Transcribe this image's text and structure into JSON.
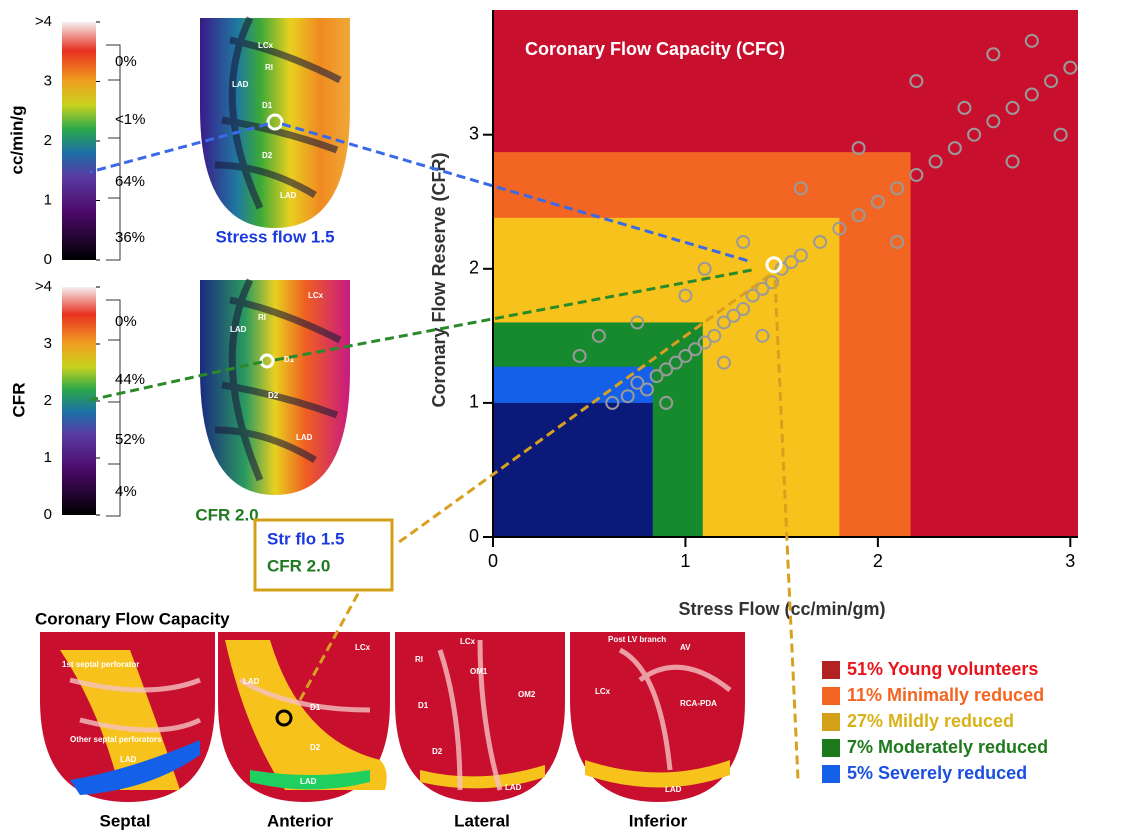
{
  "stress_map": {
    "scale_label": "cc/min/g",
    "scale_ticks": [
      0,
      1,
      2,
      3,
      {
        "value": 4,
        "label": ">4"
      }
    ],
    "percentages": [
      "0%",
      "<1%",
      "64%",
      "36%"
    ],
    "caption": "Stress flow 1.5",
    "regions": [
      "LCx",
      "RI",
      "LAD",
      "D1",
      "D2",
      "LAD"
    ]
  },
  "cfr_map": {
    "scale_label": "CFR",
    "scale_ticks": [
      0,
      1,
      2,
      3,
      {
        "value": 4,
        "label": ">4"
      }
    ],
    "percentages": [
      "0%",
      "44%",
      "52%",
      "4%"
    ],
    "caption": "CFR 2.0",
    "regions": [
      "LCx",
      "RI",
      "LAD",
      "D1",
      "D2",
      "LAD"
    ]
  },
  "callout": [
    "Str flo 1.5",
    "CFR 2.0"
  ],
  "cfc_maps": {
    "title": "Coronary Flow Capacity",
    "views": [
      "Septal",
      "Anterior",
      "Lateral",
      "Inferior"
    ],
    "regions": [
      "1st septal perforator",
      "Other septal perforators",
      "LAD",
      "LCx",
      "LAD",
      "D1",
      "D2",
      "LAD",
      "RI",
      "LCx",
      "OM1",
      "OM2",
      "D1",
      "D2",
      "LAD",
      "Post LV branch",
      "AV",
      "LCx",
      "RCA-PDA",
      "LAD"
    ]
  },
  "chart_data": {
    "type": "scatter",
    "title": "Coronary Flow Capacity (CFC)",
    "x_label": "Stress Flow (cc/min/gm)",
    "y_label": "Coronary Flow Reserve (CFR)",
    "xlim": [
      0,
      3.04
    ],
    "ylim": [
      0,
      3.93
    ],
    "xticks": [
      0,
      1,
      2,
      3
    ],
    "yticks": [
      0,
      1,
      2,
      3
    ],
    "zones": [
      {
        "xmax": 3.04,
        "ymax": 3.93,
        "color": "#c8102e"
      },
      {
        "xmax": 2.17,
        "ymax": 2.87,
        "color": "#f26522"
      },
      {
        "xmax": 1.8,
        "ymax": 2.38,
        "color": "#f7c21b"
      },
      {
        "xmax": 1.09,
        "ymax": 1.6,
        "color": "#188a2e"
      },
      {
        "xmax": 0.83,
        "ymax": 1.27,
        "color": "#1560e8"
      },
      {
        "xmax": 0.83,
        "ymax": 1.0,
        "color": "#0b1a78"
      }
    ],
    "point_color": "#9a9a9a",
    "x": [
      0.62,
      0.7,
      0.75,
      0.8,
      0.85,
      0.9,
      0.95,
      1.0,
      1.05,
      1.1,
      1.15,
      1.2,
      1.25,
      1.3,
      1.35,
      1.4,
      1.45,
      1.5,
      1.55,
      1.6,
      1.7,
      1.8,
      1.9,
      2.0,
      2.1,
      2.2,
      2.3,
      2.4,
      2.5,
      2.6,
      2.7,
      2.8,
      2.9,
      3.0,
      2.45,
      2.2,
      2.6,
      2.8,
      2.95,
      1.6,
      1.3,
      1.0,
      0.55,
      0.45,
      0.75,
      1.1,
      1.9,
      2.1,
      2.7,
      1.4,
      0.9,
      1.2
    ],
    "values": [
      1.0,
      1.05,
      1.15,
      1.1,
      1.2,
      1.25,
      1.3,
      1.35,
      1.4,
      1.45,
      1.5,
      1.6,
      1.65,
      1.7,
      1.8,
      1.85,
      1.9,
      2.0,
      2.05,
      2.1,
      2.2,
      2.3,
      2.4,
      2.5,
      2.6,
      2.7,
      2.8,
      2.9,
      3.0,
      3.1,
      3.2,
      3.3,
      3.4,
      3.5,
      3.2,
      3.4,
      3.6,
      3.7,
      3.0,
      2.6,
      2.2,
      1.8,
      1.5,
      1.35,
      1.6,
      2.0,
      2.9,
      2.2,
      2.8,
      1.5,
      1.0,
      1.3
    ],
    "highlight": {
      "x": 1.46,
      "y": 2.03
    }
  },
  "legend": [
    {
      "label": "51% Young volunteers",
      "color": "#b22222",
      "text_color": "#e8141c"
    },
    {
      "label": "11% Minimally reduced",
      "color": "#f26522",
      "text_color": "#f26522"
    },
    {
      "label": "27% Mildly reduced",
      "color": "#d4a017",
      "text_color": "#d9b21a"
    },
    {
      "label": "7% Moderately reduced",
      "color": "#1c7a1c",
      "text_color": "#1f7a1f"
    },
    {
      "label": "5% Severely reduced",
      "color": "#1560e8",
      "text_color": "#1a4fe0"
    }
  ]
}
